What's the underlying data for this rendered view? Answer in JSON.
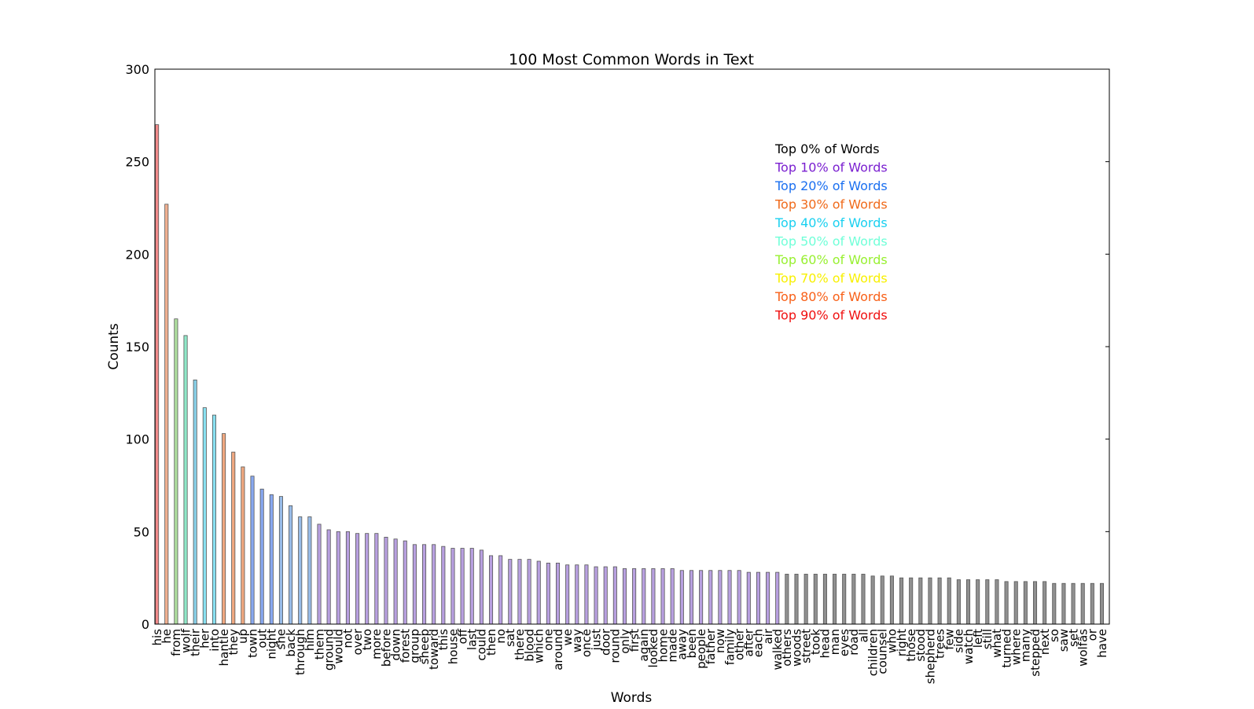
{
  "chart_data": {
    "type": "bar",
    "title": "100 Most Common Words in Text",
    "x_label": "Words",
    "y_label": "Counts",
    "categories": [
      "his",
      "he",
      "from",
      "wolf",
      "their",
      "her",
      "into",
      "hantle",
      "they",
      "up",
      "town",
      "out",
      "night",
      "she",
      "back",
      "through",
      "him",
      "them",
      "ground",
      "would",
      "not",
      "over",
      "two",
      "more",
      "before",
      "down",
      "forest",
      "group",
      "sheep",
      "toward",
      "this",
      "house",
      "off",
      "last",
      "could",
      "then",
      "no",
      "sat",
      "there",
      "blood",
      "which",
      "one",
      "around",
      "we",
      "way",
      "once",
      "just",
      "door",
      "round",
      "only",
      "first",
      "again",
      "looked",
      "home",
      "made",
      "away",
      "been",
      "people",
      "father",
      "now",
      "family",
      "other",
      "after",
      "each",
      "air",
      "walked",
      "others",
      "woods",
      "street",
      "took",
      "head",
      "man",
      "eyes",
      "road",
      "all",
      "children",
      "counsel",
      "who",
      "right",
      "those",
      "stood",
      "shepherd",
      "trees",
      "few",
      "side",
      "watch",
      "left",
      "still",
      "what",
      "turned",
      "where",
      "many",
      "stepped",
      "next",
      "so",
      "saw",
      "set",
      "wolfâs",
      "or",
      "have"
    ],
    "values": [
      270,
      227,
      165,
      156,
      132,
      117,
      113,
      103,
      93,
      85,
      80,
      73,
      70,
      69,
      64,
      58,
      58,
      54,
      51,
      50,
      50,
      49,
      49,
      49,
      47,
      46,
      45,
      43,
      43,
      43,
      42,
      41,
      41,
      41,
      40,
      37,
      37,
      35,
      35,
      35,
      34,
      33,
      33,
      32,
      32,
      32,
      31,
      31,
      31,
      30,
      30,
      30,
      30,
      30,
      30,
      29,
      29,
      29,
      29,
      29,
      29,
      29,
      28,
      28,
      28,
      28,
      27,
      27,
      27,
      27,
      27,
      27,
      27,
      27,
      27,
      26,
      26,
      26,
      25,
      25,
      25,
      25,
      25,
      25,
      24,
      24,
      24,
      24,
      24,
      23,
      23,
      23,
      23,
      23,
      22,
      22,
      22,
      22,
      22,
      22
    ],
    "colors": [
      "#f08a8a",
      "#f0b090",
      "#b0e0a0",
      "#90e8c8",
      "#88d0e8",
      "#88e0f0",
      "#88e0f0",
      "#f0a880",
      "#f0a880",
      "#f0a880",
      "#88a8f0",
      "#88a8f0",
      "#88a8f0",
      "#98bce8",
      "#98bce8",
      "#98bce8",
      "#98bce8",
      "#b8a0e0",
      "#b8a0e0",
      "#b8a0e0",
      "#b8a0e0",
      "#b8a0e0",
      "#b8a0e0",
      "#b8a0e0",
      "#b8a0e0",
      "#b8a0e0",
      "#b8a0e0",
      "#b8a0e0",
      "#b8a0e0",
      "#b8a0e0",
      "#b8a0e0",
      "#b8a0e0",
      "#b8a0e0",
      "#b8a0e0",
      "#b8a0e0",
      "#b8a0e0",
      "#b8a0e0",
      "#b8a0e0",
      "#b8a0e0",
      "#b8a0e0",
      "#b8a0e0",
      "#b8a0e0",
      "#b8a0e0",
      "#b8a0e0",
      "#b8a0e0",
      "#b8a0e0",
      "#b8a0e0",
      "#b8a0e0",
      "#b8a0e0",
      "#b8a0e0",
      "#b8a0e0",
      "#b8a0e0",
      "#b8a0e0",
      "#b8a0e0",
      "#b8a0e0",
      "#b8a0e0",
      "#b8a0e0",
      "#b8a0e0",
      "#b8a0e0",
      "#b8a0e0",
      "#b8a0e0",
      "#b8a0e0",
      "#b8a0e0",
      "#b8a0e0",
      "#b8a0e0",
      "#b8a0e0",
      "#909090",
      "#909090",
      "#909090",
      "#909090",
      "#909090",
      "#909090",
      "#909090",
      "#909090",
      "#909090",
      "#909090",
      "#909090",
      "#909090",
      "#909090",
      "#909090",
      "#909090",
      "#909090",
      "#909090",
      "#909090",
      "#909090",
      "#909090",
      "#909090",
      "#909090",
      "#909090",
      "#909090",
      "#909090",
      "#909090",
      "#909090",
      "#909090",
      "#909090",
      "#909090",
      "#909090",
      "#909090",
      "#909090",
      "#909090"
    ],
    "ylim": [
      0,
      300
    ],
    "yticks": [
      0,
      50,
      100,
      150,
      200,
      250,
      300
    ],
    "legend_texts": [
      {
        "text": "Top 0% of Words",
        "color": "#000000"
      },
      {
        "text": "Top 10% of Words",
        "color": "#7a1fd0"
      },
      {
        "text": "Top 20% of Words",
        "color": "#1a6ff0"
      },
      {
        "text": "Top 30% of Words",
        "color": "#f06a1a"
      },
      {
        "text": "Top 40% of Words",
        "color": "#1ad0f0"
      },
      {
        "text": "Top 50% of Words",
        "color": "#70ffd8"
      },
      {
        "text": "Top 60% of Words",
        "color": "#98f030"
      },
      {
        "text": "Top 70% of Words",
        "color": "#f8f000"
      },
      {
        "text": "Top 80% of Words",
        "color": "#f86018"
      },
      {
        "text": "Top 90% of Words",
        "color": "#f01010"
      }
    ]
  }
}
